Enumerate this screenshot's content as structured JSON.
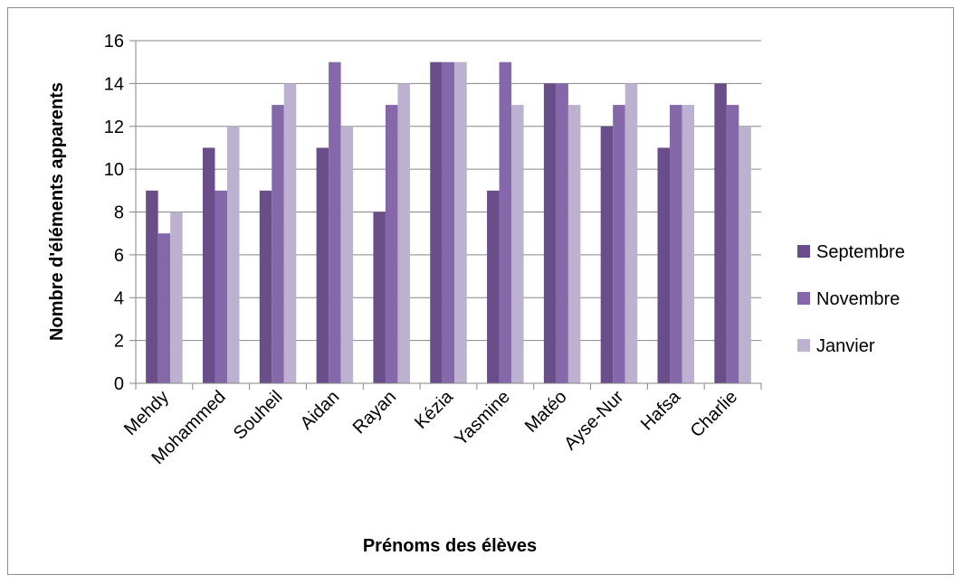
{
  "chart_data": {
    "type": "bar",
    "title": "",
    "xlabel": "Prénoms des élèves",
    "ylabel": "Nombre d'éléments apparents",
    "categories": [
      "Mehdy",
      "Mohammed",
      "Souheil",
      "Aidan",
      "Rayan",
      "Kézia",
      "Yasmine",
      "Matéo",
      "Ayse-Nur",
      "Hafsa",
      "Charlie"
    ],
    "series": [
      {
        "name": "Septembre",
        "color": "#6a4e8a",
        "values": [
          9,
          11,
          9,
          11,
          8,
          15,
          9,
          14,
          12,
          11,
          14
        ]
      },
      {
        "name": "Novembre",
        "color": "#8468aa",
        "values": [
          7,
          9,
          13,
          15,
          13,
          15,
          15,
          14,
          13,
          13,
          13
        ]
      },
      {
        "name": "Janvier",
        "color": "#bcb2cf",
        "values": [
          8,
          12,
          14,
          12,
          14,
          15,
          13,
          13,
          14,
          13,
          12
        ]
      }
    ],
    "ylim": [
      0,
      16
    ],
    "yticks": [
      "0",
      "2",
      "4",
      "6",
      "8",
      "10",
      "12",
      "14",
      "16"
    ],
    "grid": true,
    "legend_position": "right"
  }
}
